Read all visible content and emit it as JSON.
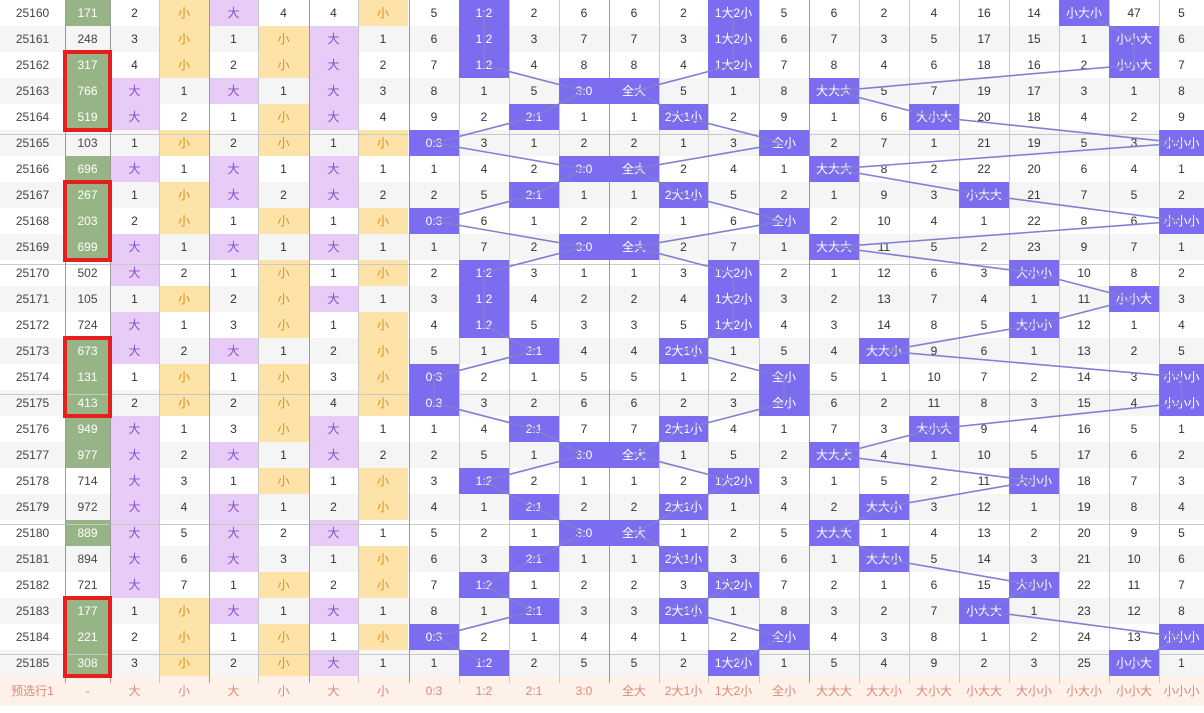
{
  "colors": {
    "highlight_purple": "#7b6cf0",
    "cell_purple": "#e6ccf7",
    "cell_yellow": "#fde3a7",
    "cell_green": "#97b486",
    "box_red": "#e61e1e",
    "trend_line": "#8080d0",
    "footer_bg": "#fdf1ea"
  },
  "rows": [
    [
      "25160",
      "171",
      "2",
      "小",
      "大",
      "4",
      "4",
      "小",
      "5",
      "1:2",
      "2",
      "6",
      "6",
      "2",
      "1大2小",
      "5",
      "6",
      "2",
      "4",
      "16",
      "14",
      "小大小",
      "47",
      "5"
    ],
    [
      "25161",
      "248",
      "3",
      "小",
      "1",
      "小",
      "大",
      "1",
      "6",
      "1:2",
      "3",
      "7",
      "7",
      "3",
      "1大2小",
      "6",
      "7",
      "3",
      "5",
      "17",
      "15",
      "1",
      "小小大",
      "6"
    ],
    [
      "25162",
      "317",
      "4",
      "小",
      "2",
      "小",
      "大",
      "2",
      "7",
      "1:2",
      "4",
      "8",
      "8",
      "4",
      "1大2小",
      "7",
      "8",
      "4",
      "6",
      "18",
      "16",
      "2",
      "小小大",
      "7"
    ],
    [
      "25163",
      "766",
      "大",
      "1",
      "大",
      "1",
      "大",
      "3",
      "8",
      "1",
      "5",
      "3:0",
      "全大",
      "5",
      "1",
      "8",
      "大大大",
      "5",
      "7",
      "19",
      "17",
      "3",
      "1",
      "8"
    ],
    [
      "25164",
      "519",
      "大",
      "2",
      "1",
      "小",
      "大",
      "4",
      "9",
      "2",
      "2:1",
      "1",
      "1",
      "2大1小",
      "2",
      "9",
      "1",
      "6",
      "大小大",
      "20",
      "18",
      "4",
      "2",
      "9"
    ],
    [
      "25165",
      "103",
      "1",
      "小",
      "2",
      "小",
      "1",
      "小",
      "0:3",
      "3",
      "1",
      "2",
      "2",
      "1",
      "3",
      "全小",
      "2",
      "7",
      "1",
      "21",
      "19",
      "5",
      "3",
      "小小小"
    ],
    [
      "25166",
      "696",
      "大",
      "1",
      "大",
      "1",
      "大",
      "1",
      "1",
      "4",
      "2",
      "3:0",
      "全大",
      "2",
      "4",
      "1",
      "大大大",
      "8",
      "2",
      "22",
      "20",
      "6",
      "4",
      "1"
    ],
    [
      "25167",
      "267",
      "1",
      "小",
      "大",
      "2",
      "大",
      "2",
      "2",
      "5",
      "2:1",
      "1",
      "1",
      "2大1小",
      "5",
      "2",
      "1",
      "9",
      "3",
      "小大大",
      "21",
      "7",
      "5",
      "2"
    ],
    [
      "25168",
      "203",
      "2",
      "小",
      "1",
      "小",
      "1",
      "小",
      "0:3",
      "6",
      "1",
      "2",
      "2",
      "1",
      "6",
      "全小",
      "2",
      "10",
      "4",
      "1",
      "22",
      "8",
      "6",
      "小小小"
    ],
    [
      "25169",
      "699",
      "大",
      "1",
      "大",
      "1",
      "大",
      "1",
      "1",
      "7",
      "2",
      "3:0",
      "全大",
      "2",
      "7",
      "1",
      "大大大",
      "11",
      "5",
      "2",
      "23",
      "9",
      "7",
      "1"
    ],
    [
      "25170",
      "502",
      "大",
      "2",
      "1",
      "小",
      "1",
      "小",
      "2",
      "1:2",
      "3",
      "1",
      "1",
      "3",
      "1大2小",
      "2",
      "1",
      "12",
      "6",
      "3",
      "大小小",
      "10",
      "8",
      "2"
    ],
    [
      "25171",
      "105",
      "1",
      "小",
      "2",
      "小",
      "大",
      "1",
      "3",
      "1:2",
      "4",
      "2",
      "2",
      "4",
      "1大2小",
      "3",
      "2",
      "13",
      "7",
      "4",
      "1",
      "11",
      "小小大",
      "3"
    ],
    [
      "25172",
      "724",
      "大",
      "1",
      "3",
      "小",
      "1",
      "小",
      "4",
      "1:2",
      "5",
      "3",
      "3",
      "5",
      "1大2小",
      "4",
      "3",
      "14",
      "8",
      "5",
      "大小小",
      "12",
      "1",
      "4"
    ],
    [
      "25173",
      "673",
      "大",
      "2",
      "大",
      "1",
      "2",
      "小",
      "5",
      "1",
      "2:1",
      "4",
      "4",
      "2大1小",
      "1",
      "5",
      "4",
      "大大小",
      "9",
      "6",
      "1",
      "13",
      "2",
      "5"
    ],
    [
      "25174",
      "131",
      "1",
      "小",
      "1",
      "小",
      "3",
      "小",
      "0:3",
      "2",
      "1",
      "5",
      "5",
      "1",
      "2",
      "全小",
      "5",
      "1",
      "10",
      "7",
      "2",
      "14",
      "3",
      "小小小"
    ],
    [
      "25175",
      "413",
      "2",
      "小",
      "2",
      "小",
      "4",
      "小",
      "0:3",
      "3",
      "2",
      "6",
      "6",
      "2",
      "3",
      "全小",
      "6",
      "2",
      "11",
      "8",
      "3",
      "15",
      "4",
      "小小小"
    ],
    [
      "25176",
      "949",
      "大",
      "1",
      "3",
      "小",
      "大",
      "1",
      "1",
      "4",
      "2:1",
      "7",
      "7",
      "2大1小",
      "4",
      "1",
      "7",
      "3",
      "大小大",
      "9",
      "4",
      "16",
      "5",
      "1"
    ],
    [
      "25177",
      "977",
      "大",
      "2",
      "大",
      "1",
      "大",
      "2",
      "2",
      "5",
      "1",
      "3:0",
      "全大",
      "1",
      "5",
      "2",
      "大大大",
      "4",
      "1",
      "10",
      "5",
      "17",
      "6",
      "2"
    ],
    [
      "25178",
      "714",
      "大",
      "3",
      "1",
      "小",
      "1",
      "小",
      "3",
      "1:2",
      "2",
      "1",
      "1",
      "2",
      "1大2小",
      "3",
      "1",
      "5",
      "2",
      "11",
      "大小小",
      "18",
      "7",
      "3"
    ],
    [
      "25179",
      "972",
      "大",
      "4",
      "大",
      "1",
      "2",
      "小",
      "4",
      "1",
      "2:1",
      "2",
      "2",
      "2大1小",
      "1",
      "4",
      "2",
      "大大小",
      "3",
      "12",
      "1",
      "19",
      "8",
      "4"
    ],
    [
      "25180",
      "889",
      "大",
      "5",
      "大",
      "2",
      "大",
      "1",
      "5",
      "2",
      "1",
      "3:0",
      "全大",
      "1",
      "2",
      "5",
      "大大大",
      "1",
      "4",
      "13",
      "2",
      "20",
      "9",
      "5"
    ],
    [
      "25181",
      "894",
      "大",
      "6",
      "大",
      "3",
      "1",
      "小",
      "6",
      "3",
      "2:1",
      "1",
      "1",
      "2大1小",
      "3",
      "6",
      "1",
      "大大小",
      "5",
      "14",
      "3",
      "21",
      "10",
      "6"
    ],
    [
      "25182",
      "721",
      "大",
      "7",
      "1",
      "小",
      "2",
      "小",
      "7",
      "1:2",
      "1",
      "2",
      "2",
      "3",
      "1大2小",
      "7",
      "2",
      "1",
      "6",
      "15",
      "大小小",
      "22",
      "11",
      "7"
    ],
    [
      "25183",
      "177",
      "1",
      "小",
      "大",
      "1",
      "大",
      "1",
      "8",
      "1",
      "2:1",
      "3",
      "3",
      "2大1小",
      "1",
      "8",
      "3",
      "2",
      "7",
      "小大大",
      "1",
      "23",
      "12",
      "8"
    ],
    [
      "25184",
      "221",
      "2",
      "小",
      "1",
      "小",
      "1",
      "小",
      "0:3",
      "2",
      "1",
      "4",
      "4",
      "1",
      "2",
      "全小",
      "4",
      "3",
      "8",
      "1",
      "2",
      "24",
      "13",
      "小小小"
    ],
    [
      "25185",
      "308",
      "3",
      "小",
      "2",
      "小",
      "大",
      "1",
      "1",
      "1:2",
      "2",
      "5",
      "5",
      "2",
      "1大2小",
      "1",
      "5",
      "4",
      "9",
      "2",
      "3",
      "25",
      "小小大",
      "1"
    ]
  ],
  "highlight_values": [
    "1:2",
    "2:1",
    "3:0",
    "0:3",
    "全大",
    "全小",
    "2大1小",
    "1大2小",
    "大大大",
    "大大小",
    "大小大",
    "小大大",
    "大小小",
    "小大小",
    "小小大",
    "小小小"
  ],
  "footer": {
    "label": "预选行1",
    "cells": [
      "-",
      "大",
      "小",
      "大",
      "小",
      "大",
      "小",
      "0:3",
      "1:2",
      "2:1",
      "3:0",
      "全大",
      "2大1小",
      "1大2小",
      "全小",
      "大大大",
      "大大小",
      "大小大",
      "小大大",
      "大小小",
      "小大小",
      "小小大",
      "小小小"
    ]
  }
}
